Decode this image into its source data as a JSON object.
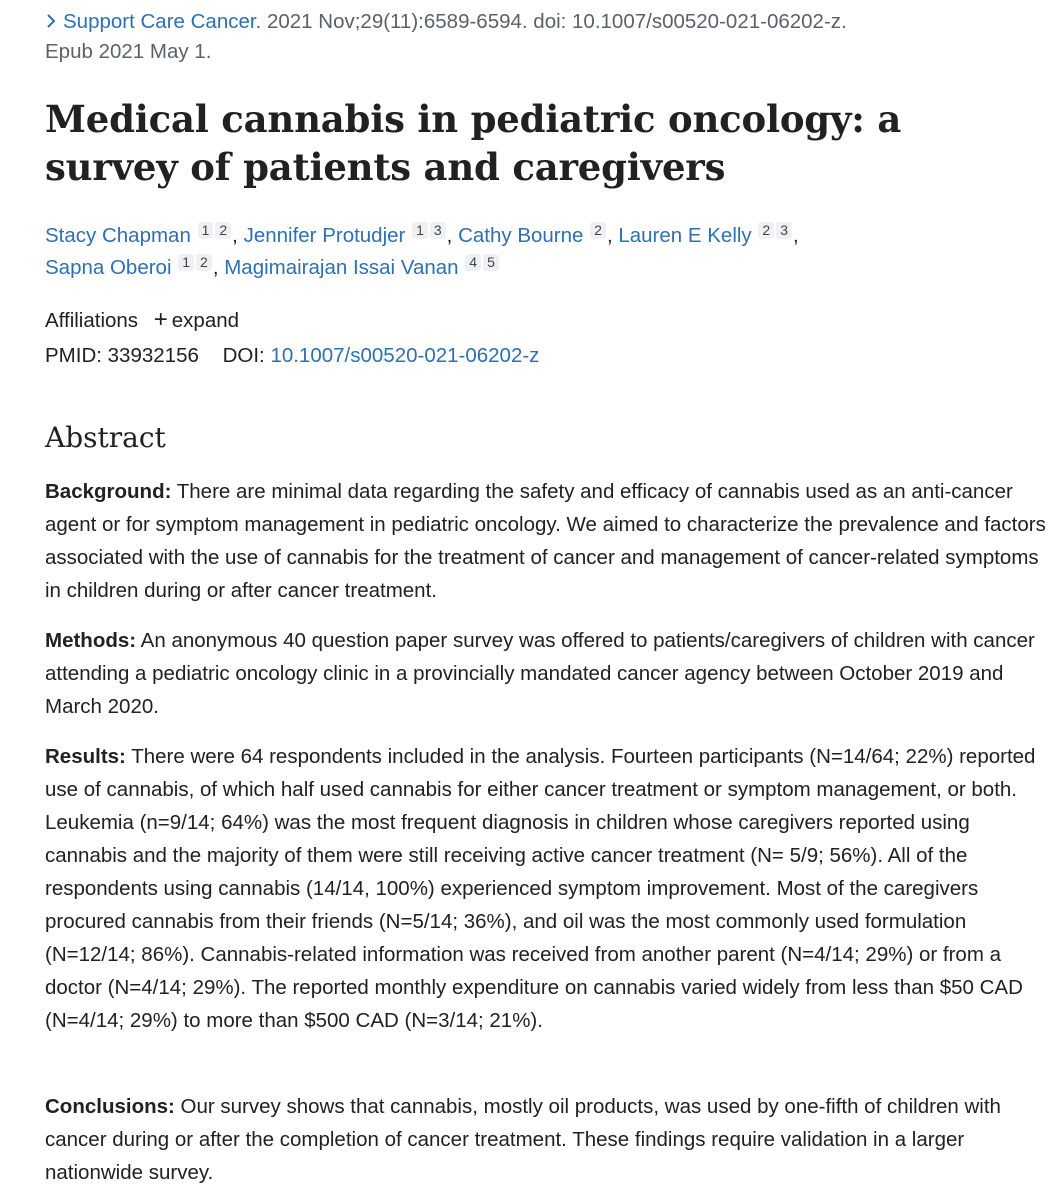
{
  "citation": {
    "journal": "Support Care Cancer.",
    "details": " 2021 Nov;29(11):6589-6594. doi: 10.1007/s00520-021-06202-z.",
    "epub": "Epub 2021 May 1."
  },
  "title": "Medical cannabis in pediatric oncology: a survey of patients and caregivers",
  "authors": [
    {
      "name": "Stacy Chapman",
      "affils": [
        "1",
        "2"
      ]
    },
    {
      "name": "Jennifer Protudjer",
      "affils": [
        "1",
        "3"
      ]
    },
    {
      "name": "Cathy Bourne",
      "affils": [
        "2"
      ]
    },
    {
      "name": "Lauren E Kelly",
      "affils": [
        "2",
        "3"
      ]
    },
    {
      "name": "Sapna Oberoi",
      "affils": [
        "1",
        "2"
      ]
    },
    {
      "name": "Magimairajan Issai Vanan",
      "affils": [
        "4",
        "5"
      ]
    }
  ],
  "affiliations": {
    "label": "Affiliations",
    "expand_label": "expand"
  },
  "ids": {
    "pmid_label": "PMID:",
    "pmid": "33932156",
    "doi_label": "DOI:",
    "doi": "10.1007/s00520-021-06202-z"
  },
  "abstract": {
    "heading": "Abstract",
    "background_label": "Background:",
    "background_text": " There are minimal data regarding the safety and efficacy of cannabis used as an anti-cancer agent or for symptom management in pediatric oncology. We aimed to characterize the prevalence and factors associated with the use of cannabis for the treatment of cancer and management of cancer-related symptoms in children during or after cancer treatment.",
    "methods_label": "Methods:",
    "methods_text": " An anonymous 40 question paper survey was offered to patients/caregivers of children with cancer attending a pediatric oncology clinic in a provincially mandated cancer agency between October 2019 and March 2020.",
    "results_label": "Results:",
    "results_text": " There were 64 respondents included in the analysis. Fourteen participants (N=14/64; 22%) reported use of cannabis, of which half used cannabis for either cancer treatment or symptom management, or both. Leukemia (n=9/14; 64%) was the most frequent diagnosis in children whose caregivers reported using cannabis and the majority of them were still receiving active cancer treatment (N= 5/9; 56%). All of the respondents using cannabis (14/14, 100%) experienced symptom improvement. Most of the caregivers procured cannabis from their friends (N=5/14; 36%), and oil was the most commonly used formulation (N=12/14; 86%). Cannabis-related information was received from another parent (N=4/14; 29%) or from a doctor (N=4/14; 29%). The reported monthly expenditure on cannabis varied widely from less than $50 CAD (N=4/14; 29%) to more than $500 CAD (N=3/14; 21%).",
    "conclusions_label": "Conclusions:",
    "conclusions_text": " Our survey shows that cannabis, mostly oil products, was used by one-fifth of children with cancer during or after the completion of cancer treatment. These findings require validation in a larger nationwide survey."
  }
}
